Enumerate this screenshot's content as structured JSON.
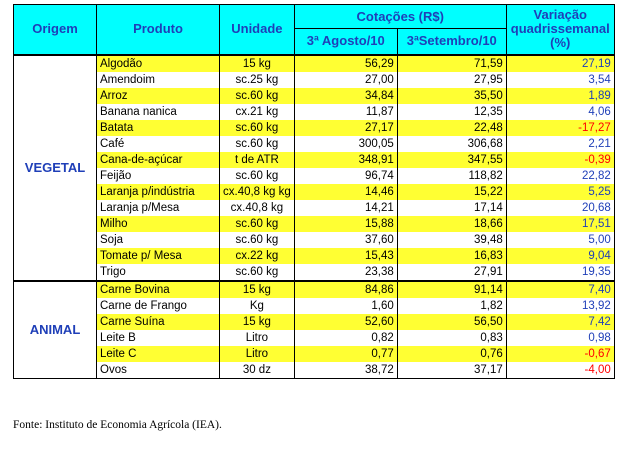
{
  "header": {
    "origem": "Origem",
    "produto": "Produto",
    "unidade": "Unidade",
    "cotacoes": "Cotações (R$)",
    "ago": "3ª Agosto/10",
    "set": "3ªSetembro/10",
    "variacao": "Variação quadrissemanal (%)"
  },
  "groups": [
    {
      "origem": "VEGETAL",
      "rows": [
        {
          "produto": "Algodão",
          "unidade": "15 kg",
          "ago": "56,29",
          "set": "71,59",
          "var": "27,19",
          "neg": false,
          "hl": true
        },
        {
          "produto": "Amendoim",
          "unidade": "sc.25 kg",
          "ago": "27,00",
          "set": "27,95",
          "var": "3,54",
          "neg": false,
          "hl": false
        },
        {
          "produto": "Arroz",
          "unidade": "sc.60 kg",
          "ago": "34,84",
          "set": "35,50",
          "var": "1,89",
          "neg": false,
          "hl": true
        },
        {
          "produto": "Banana nanica",
          "unidade": "cx.21 kg",
          "ago": "11,87",
          "set": "12,35",
          "var": "4,06",
          "neg": false,
          "hl": false
        },
        {
          "produto": "Batata",
          "unidade": "sc.60 kg",
          "ago": "27,17",
          "set": "22,48",
          "var": "-17,27",
          "neg": true,
          "hl": true
        },
        {
          "produto": "Café",
          "unidade": "sc.60 kg",
          "ago": "300,05",
          "set": "306,68",
          "var": "2,21",
          "neg": false,
          "hl": false
        },
        {
          "produto": "Cana-de-açúcar",
          "unidade": "t de ATR",
          "ago": "348,91",
          "set": "347,55",
          "var": "-0,39",
          "neg": true,
          "hl": true
        },
        {
          "produto": "Feijão",
          "unidade": "sc.60 kg",
          "ago": "96,74",
          "set": "118,82",
          "var": "22,82",
          "neg": false,
          "hl": false
        },
        {
          "produto": "Laranja p/indústria",
          "unidade": "cx.40,8 kg kg",
          "ago": "14,46",
          "set": "15,22",
          "var": "5,25",
          "neg": false,
          "hl": true
        },
        {
          "produto": "Laranja p/Mesa",
          "unidade": "cx.40,8 kg",
          "ago": "14,21",
          "set": "17,14",
          "var": "20,68",
          "neg": false,
          "hl": false
        },
        {
          "produto": "Milho",
          "unidade": "sc.60 kg",
          "ago": "15,88",
          "set": "18,66",
          "var": "17,51",
          "neg": false,
          "hl": true
        },
        {
          "produto": "Soja",
          "unidade": "sc.60 kg",
          "ago": "37,60",
          "set": "39,48",
          "var": "5,00",
          "neg": false,
          "hl": false
        },
        {
          "produto": "Tomate p/ Mesa",
          "unidade": "cx.22 kg",
          "ago": "15,43",
          "set": "16,83",
          "var": "9,04",
          "neg": false,
          "hl": true
        },
        {
          "produto": "Trigo",
          "unidade": "sc.60 kg",
          "ago": "23,38",
          "set": "27,91",
          "var": "19,35",
          "neg": false,
          "hl": false
        }
      ]
    },
    {
      "origem": "ANIMAL",
      "rows": [
        {
          "produto": "Carne Bovina",
          "unidade": "15 kg",
          "ago": "84,86",
          "set": "91,14",
          "var": "7,40",
          "neg": false,
          "hl": true
        },
        {
          "produto": "Carne de Frango",
          "unidade": "Kg",
          "ago": "1,60",
          "set": "1,82",
          "var": "13,92",
          "neg": false,
          "hl": false
        },
        {
          "produto": "Carne Suína",
          "unidade": "15 kg",
          "ago": "52,60",
          "set": "56,50",
          "var": "7,42",
          "neg": false,
          "hl": true
        },
        {
          "produto": "Leite B",
          "unidade": "Litro",
          "ago": "0,82",
          "set": "0,83",
          "var": "0,98",
          "neg": false,
          "hl": false
        },
        {
          "produto": "Leite C",
          "unidade": "Litro",
          "ago": "0,77",
          "set": "0,76",
          "var": "-0,67",
          "neg": true,
          "hl": true
        },
        {
          "produto": "Ovos",
          "unidade": "30 dz",
          "ago": "38,72",
          "set": "37,17",
          "var": "-4,00",
          "neg": true,
          "hl": false
        }
      ]
    }
  ],
  "source": "Fonte: Instituto de Economia Agrícola (IEA)."
}
